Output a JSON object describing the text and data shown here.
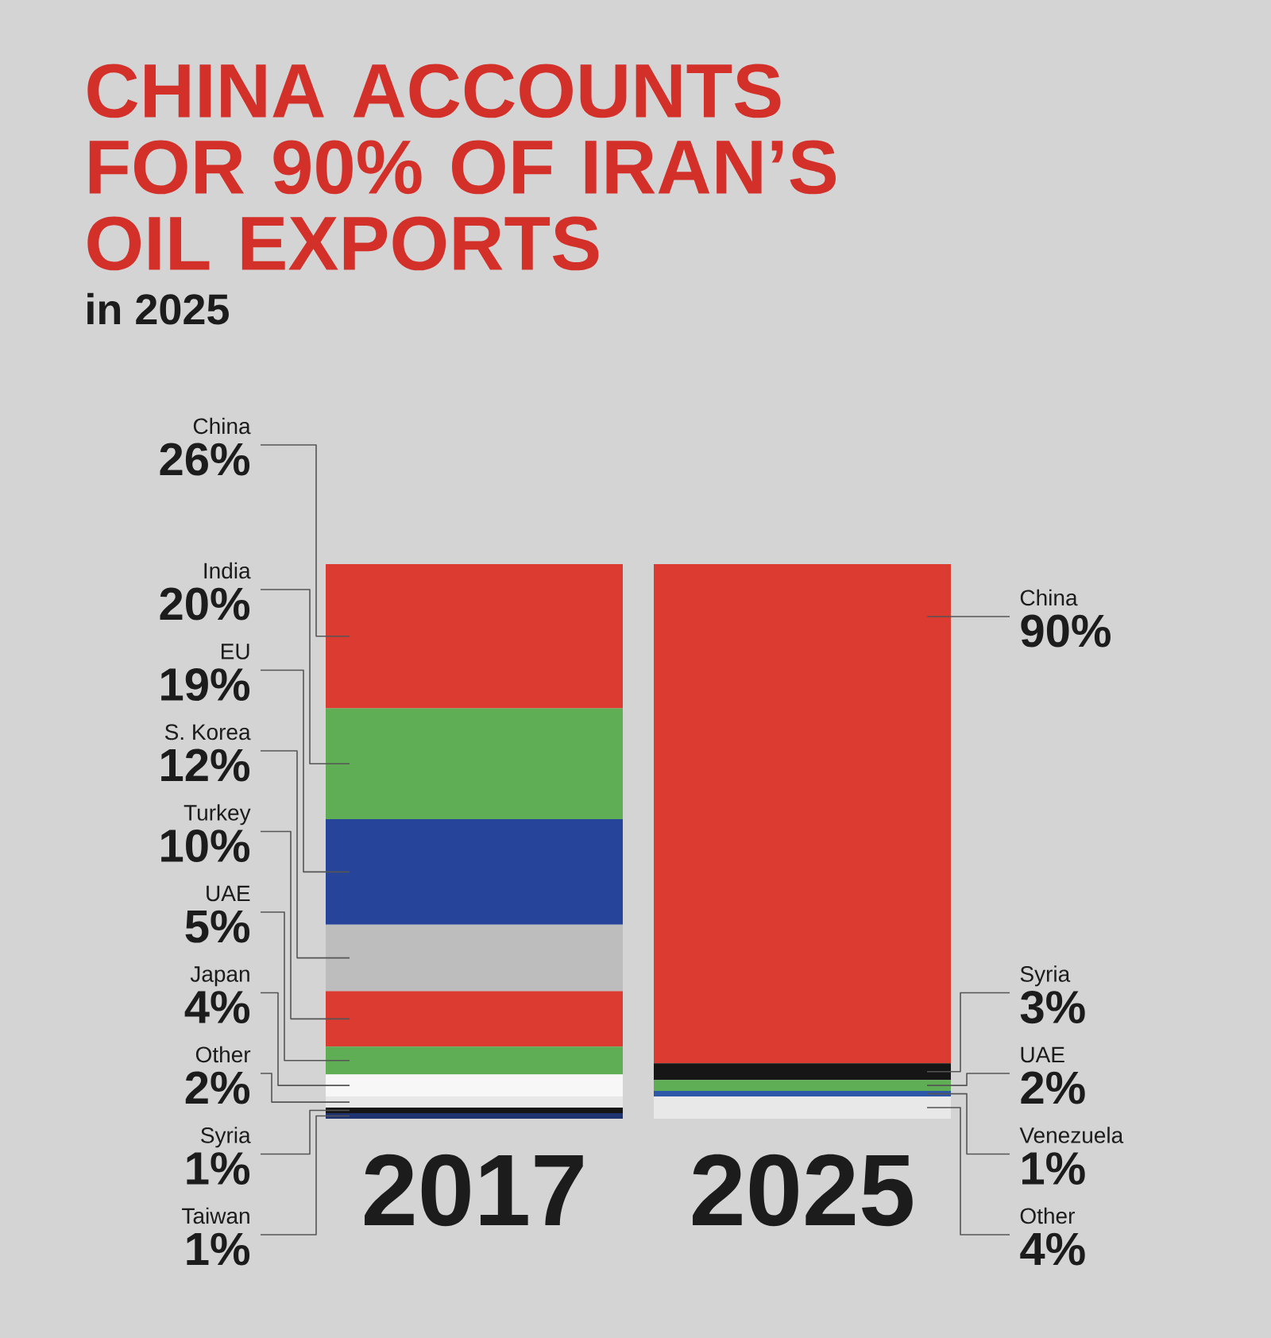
{
  "chart_data": {
    "type": "bar",
    "title": "CHINA ACCOUNTS FOR 90% OF IRAN’S OIL EXPORTS",
    "subtitle": "in 2025",
    "categories": [
      "2017",
      "2025"
    ],
    "stacked": true,
    "series": [
      {
        "name": "Taiwan",
        "color": "#1f3370",
        "values": [
          1,
          null
        ],
        "value_labels": [
          "1%",
          null
        ]
      },
      {
        "name": "Syria",
        "color": "#161616",
        "values": [
          1,
          null
        ],
        "value_labels": [
          "1%",
          null
        ]
      },
      {
        "name": "Other",
        "color": "#e8e8e8",
        "values": [
          2,
          null
        ],
        "value_labels": [
          "2%",
          null
        ]
      },
      {
        "name": "Japan",
        "color": "#f7f7f7",
        "values": [
          4,
          null
        ],
        "value_labels": [
          "4%",
          null
        ]
      },
      {
        "name": "UAE",
        "color": "#5fae55",
        "values": [
          5,
          null
        ],
        "value_labels": [
          "5%",
          null
        ]
      },
      {
        "name": "Turkey",
        "color": "#db3b30",
        "values": [
          10,
          null
        ],
        "value_labels": [
          "10%",
          null
        ]
      },
      {
        "name": "S. Korea",
        "color": "#bdbdbd",
        "values": [
          12,
          null
        ],
        "value_labels": [
          "12%",
          null
        ]
      },
      {
        "name": "EU",
        "color": "#27449b",
        "values": [
          19,
          null
        ],
        "value_labels": [
          "19%",
          null
        ]
      },
      {
        "name": "India",
        "color": "#5fae55",
        "values": [
          20,
          null
        ],
        "value_labels": [
          "20%",
          null
        ]
      },
      {
        "name": "China",
        "color": "#db3b30",
        "values": [
          26,
          null
        ],
        "value_labels": [
          "26%",
          null
        ]
      },
      {
        "name": "Other",
        "color": "#e8e8e8",
        "values": [
          null,
          4
        ],
        "value_labels": [
          null,
          "4%"
        ]
      },
      {
        "name": "Venezuela",
        "color": "#2d57a8",
        "values": [
          null,
          1
        ],
        "value_labels": [
          null,
          "1%"
        ]
      },
      {
        "name": "UAE",
        "color": "#5fae55",
        "values": [
          null,
          2
        ],
        "value_labels": [
          null,
          "2%"
        ]
      },
      {
        "name": "Syria",
        "color": "#161616",
        "values": [
          null,
          3
        ],
        "value_labels": [
          null,
          "3%"
        ]
      },
      {
        "name": "China",
        "color": "#db3b30",
        "values": [
          null,
          90
        ],
        "value_labels": [
          null,
          "90%"
        ]
      }
    ]
  }
}
